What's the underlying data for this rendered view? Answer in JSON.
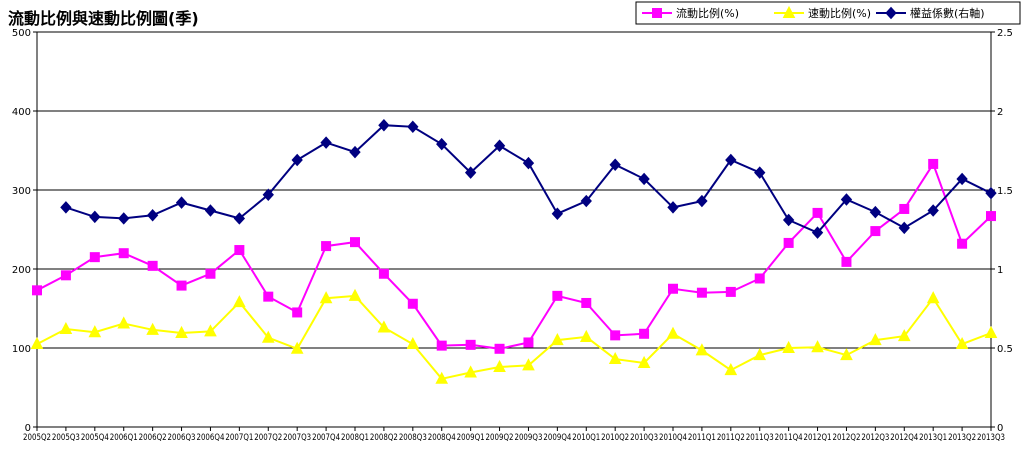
{
  "chart_data": {
    "type": "line",
    "title": "流動比例與速動比例圖(季)",
    "categories": [
      "2005Q2",
      "2005Q3",
      "2005Q4",
      "2006Q1",
      "2006Q2",
      "2006Q3",
      "2006Q4",
      "2007Q1",
      "2007Q2",
      "2007Q3",
      "2007Q4",
      "2008Q1",
      "2008Q2",
      "2008Q3",
      "2008Q4",
      "2009Q1",
      "2009Q2",
      "2009Q3",
      "2009Q4",
      "2010Q1",
      "2010Q2",
      "2010Q3",
      "2010Q4",
      "2011Q1",
      "2011Q2",
      "2011Q3",
      "2011Q4",
      "2012Q1",
      "2012Q2",
      "2012Q3",
      "2012Q4",
      "2013Q1",
      "2013Q2",
      "2013Q3"
    ],
    "y_left": {
      "min": 0,
      "max": 500,
      "ticks": [
        "0",
        "100",
        "200",
        "300",
        "400",
        "500"
      ]
    },
    "y_right": {
      "min": 0,
      "max": 2.5,
      "ticks": [
        "0",
        "0.5",
        "1",
        "1.5",
        "2",
        "2.5"
      ]
    },
    "grid": true,
    "legend_position": "top-right",
    "colors": {
      "current_ratio": "#ff00ff",
      "quick_ratio": "#ffff00",
      "equity_multiplier": "#000080"
    },
    "series": [
      {
        "name": "流動比例(%)",
        "axis": "left",
        "marker": "square",
        "color": "#ff00ff",
        "values": [
          173,
          192,
          215,
          220,
          204,
          179,
          194,
          224,
          165,
          145,
          229,
          234,
          194,
          156,
          103,
          104,
          99,
          107,
          166,
          157,
          116,
          118,
          175,
          170,
          171,
          188,
          233,
          271,
          209,
          248,
          276,
          333,
          232,
          267
        ]
      },
      {
        "name": "速動比例(%)",
        "axis": "left",
        "marker": "triangle",
        "color": "#ffff00",
        "values": [
          105,
          124,
          120,
          131,
          123,
          119,
          121,
          158,
          113,
          99,
          163,
          166,
          126,
          105,
          61,
          69,
          76,
          78,
          110,
          114,
          86,
          81,
          118,
          97,
          72,
          91,
          100,
          101,
          91,
          110,
          115,
          163,
          105,
          119
        ]
      },
      {
        "name": "權益係數(右軸)",
        "axis": "right",
        "marker": "diamond",
        "color": "#000080",
        "values": [
          null,
          1.39,
          1.33,
          1.32,
          1.34,
          1.42,
          1.37,
          1.32,
          1.47,
          1.69,
          1.8,
          1.74,
          1.91,
          1.9,
          1.79,
          1.61,
          1.78,
          1.67,
          1.35,
          1.43,
          1.66,
          1.57,
          1.39,
          1.43,
          1.69,
          1.61,
          1.31,
          1.23,
          1.44,
          1.36,
          1.26,
          1.37,
          1.57,
          1.48
        ]
      }
    ]
  }
}
